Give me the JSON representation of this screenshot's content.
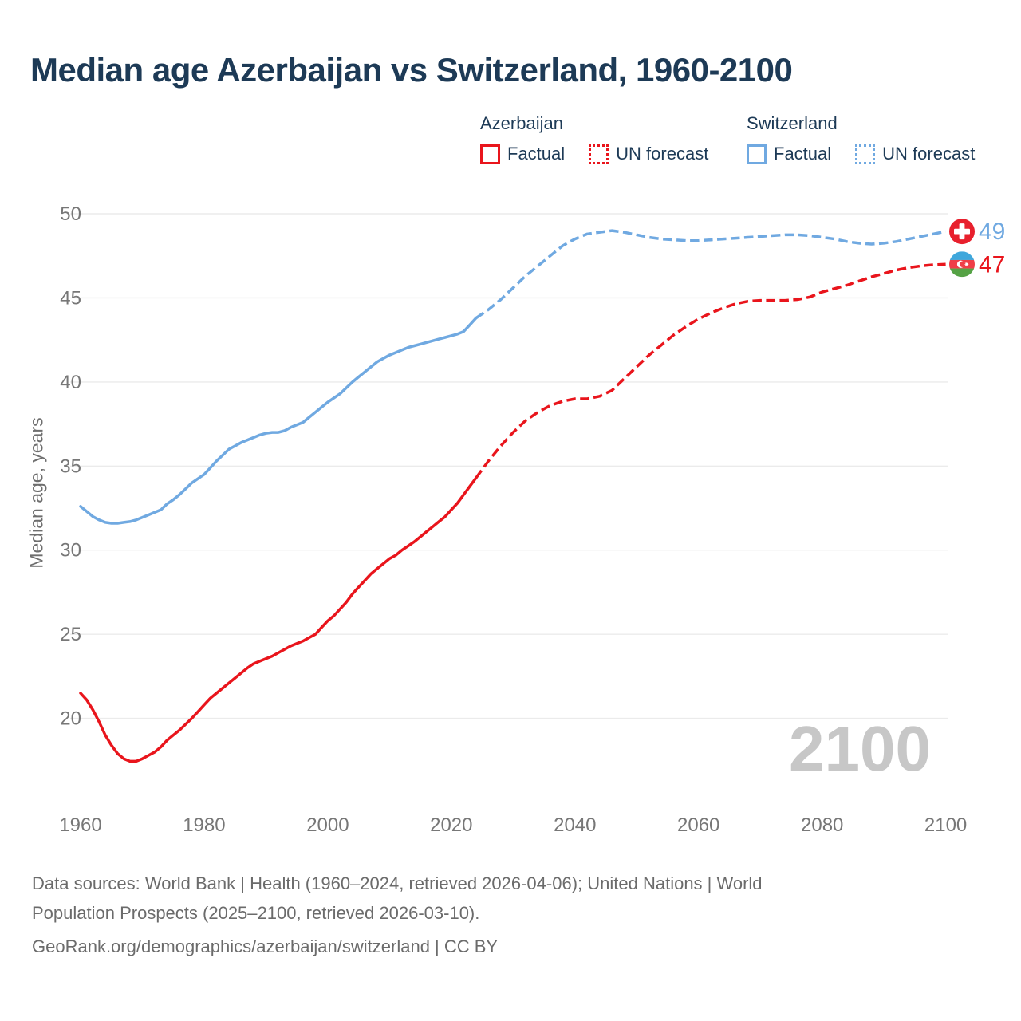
{
  "title": "Median age Azerbaijan vs Switzerland, 1960-2100",
  "watermark": "2100",
  "colors": {
    "red": "#e9151c",
    "blue": "#70a9e1",
    "navy": "#1d3a56",
    "tick_gray": "#777777",
    "grid_gray": "#ebebeb",
    "watermark_gray": "#c7c7c7"
  },
  "legend": {
    "groups": [
      {
        "name": "Azerbaijan",
        "items": [
          {
            "label": "Factual",
            "style": "solid"
          },
          {
            "label": "UN forecast",
            "style": "dotted"
          }
        ]
      },
      {
        "name": "Switzerland",
        "items": [
          {
            "label": "Factual",
            "style": "solid"
          },
          {
            "label": "UN forecast",
            "style": "dotted"
          }
        ]
      }
    ]
  },
  "footer": {
    "line1": "Data sources: World Bank | Health (1960–2024, retrieved 2026-04-06); United Nations | World",
    "line2": "Population Prospects (2025–2100, retrieved 2026-03-10).",
    "line3": "GeoRank.org/demographics/azerbaijan/switzerland | CC BY"
  },
  "chart_data": {
    "type": "line",
    "title": "Median age Azerbaijan vs Switzerland, 1960-2100",
    "xlabel": "",
    "ylabel": "Median age, years",
    "xlim": [
      1960,
      2100
    ],
    "ylim": [
      17,
      50
    ],
    "grid": "horizontal-only",
    "legend_position": "top-right",
    "yticks": [
      50,
      45,
      40,
      35,
      30,
      25,
      20
    ],
    "xticks": [
      1960,
      1980,
      2000,
      2020,
      2040,
      2060,
      2080,
      2100
    ],
    "flag_colors": {
      "swiss_red": "#e8202d",
      "az_blue": "#3fa7dc",
      "az_red": "#ef3e47",
      "az_green": "#55a245"
    },
    "end_markers": [
      {
        "flag": "switzerland-flag",
        "label": "49",
        "value": 48.95,
        "label_color": "#70a9e1"
      },
      {
        "flag": "azerbaijan-flag",
        "label": "47",
        "value": 47.0,
        "label_color": "#e9151c"
      }
    ],
    "series": [
      {
        "id": "switzerland-factual",
        "name": "Switzerland Factual",
        "color": "#70a9e1",
        "style": "solid",
        "points": [
          [
            1960,
            32.6
          ],
          [
            1961,
            32.3
          ],
          [
            1962,
            32.0
          ],
          [
            1963,
            31.8
          ],
          [
            1964,
            31.65
          ],
          [
            1965,
            31.6
          ],
          [
            1966,
            31.6
          ],
          [
            1967,
            31.65
          ],
          [
            1968,
            31.7
          ],
          [
            1969,
            31.8
          ],
          [
            1970,
            31.95
          ],
          [
            1971,
            32.1
          ],
          [
            1972,
            32.25
          ],
          [
            1973,
            32.4
          ],
          [
            1974,
            32.75
          ],
          [
            1975,
            33.0
          ],
          [
            1976,
            33.3
          ],
          [
            1977,
            33.65
          ],
          [
            1978,
            34.0
          ],
          [
            1979,
            34.25
          ],
          [
            1980,
            34.5
          ],
          [
            1981,
            34.9
          ],
          [
            1982,
            35.3
          ],
          [
            1983,
            35.65
          ],
          [
            1984,
            36.0
          ],
          [
            1985,
            36.2
          ],
          [
            1986,
            36.4
          ],
          [
            1987,
            36.55
          ],
          [
            1988,
            36.7
          ],
          [
            1989,
            36.85
          ],
          [
            1990,
            36.95
          ],
          [
            1991,
            37.0
          ],
          [
            1992,
            37.0
          ],
          [
            1993,
            37.1
          ],
          [
            1994,
            37.3
          ],
          [
            1995,
            37.45
          ],
          [
            1996,
            37.6
          ],
          [
            1997,
            37.9
          ],
          [
            1998,
            38.2
          ],
          [
            1999,
            38.5
          ],
          [
            2000,
            38.8
          ],
          [
            2001,
            39.05
          ],
          [
            2002,
            39.3
          ],
          [
            2003,
            39.65
          ],
          [
            2004,
            40.0
          ],
          [
            2005,
            40.3
          ],
          [
            2006,
            40.6
          ],
          [
            2007,
            40.9
          ],
          [
            2008,
            41.2
          ],
          [
            2009,
            41.4
          ],
          [
            2010,
            41.6
          ],
          [
            2011,
            41.75
          ],
          [
            2012,
            41.9
          ],
          [
            2013,
            42.05
          ],
          [
            2014,
            42.15
          ],
          [
            2015,
            42.25
          ],
          [
            2016,
            42.35
          ],
          [
            2017,
            42.45
          ],
          [
            2018,
            42.55
          ],
          [
            2019,
            42.65
          ],
          [
            2020,
            42.75
          ],
          [
            2021,
            42.85
          ],
          [
            2022,
            43.0
          ],
          [
            2023,
            43.4
          ],
          [
            2024,
            43.8
          ]
        ]
      },
      {
        "id": "switzerland-forecast",
        "name": "Switzerland UN forecast",
        "color": "#70a9e1",
        "style": "dashed",
        "points": [
          [
            2024,
            43.8
          ],
          [
            2026,
            44.3
          ],
          [
            2028,
            44.9
          ],
          [
            2030,
            45.6
          ],
          [
            2032,
            46.3
          ],
          [
            2034,
            46.9
          ],
          [
            2036,
            47.5
          ],
          [
            2038,
            48.1
          ],
          [
            2040,
            48.5
          ],
          [
            2042,
            48.8
          ],
          [
            2044,
            48.9
          ],
          [
            2046,
            49.0
          ],
          [
            2048,
            48.9
          ],
          [
            2050,
            48.75
          ],
          [
            2052,
            48.6
          ],
          [
            2054,
            48.5
          ],
          [
            2056,
            48.45
          ],
          [
            2058,
            48.4
          ],
          [
            2060,
            48.4
          ],
          [
            2062,
            48.45
          ],
          [
            2064,
            48.5
          ],
          [
            2066,
            48.55
          ],
          [
            2068,
            48.6
          ],
          [
            2070,
            48.65
          ],
          [
            2072,
            48.7
          ],
          [
            2074,
            48.75
          ],
          [
            2076,
            48.75
          ],
          [
            2078,
            48.7
          ],
          [
            2080,
            48.6
          ],
          [
            2082,
            48.5
          ],
          [
            2084,
            48.35
          ],
          [
            2086,
            48.25
          ],
          [
            2088,
            48.2
          ],
          [
            2090,
            48.25
          ],
          [
            2092,
            48.35
          ],
          [
            2094,
            48.5
          ],
          [
            2096,
            48.65
          ],
          [
            2098,
            48.8
          ],
          [
            2100,
            48.95
          ]
        ]
      },
      {
        "id": "azerbaijan-factual",
        "name": "Azerbaijan Factual",
        "color": "#e9151c",
        "style": "solid",
        "points": [
          [
            1960,
            21.5
          ],
          [
            1961,
            21.1
          ],
          [
            1962,
            20.5
          ],
          [
            1963,
            19.8
          ],
          [
            1964,
            19.0
          ],
          [
            1965,
            18.4
          ],
          [
            1966,
            17.9
          ],
          [
            1967,
            17.6
          ],
          [
            1968,
            17.45
          ],
          [
            1969,
            17.45
          ],
          [
            1970,
            17.6
          ],
          [
            1971,
            17.8
          ],
          [
            1972,
            18.0
          ],
          [
            1973,
            18.3
          ],
          [
            1974,
            18.7
          ],
          [
            1975,
            19.0
          ],
          [
            1976,
            19.3
          ],
          [
            1977,
            19.65
          ],
          [
            1978,
            20.0
          ],
          [
            1979,
            20.4
          ],
          [
            1980,
            20.8
          ],
          [
            1981,
            21.2
          ],
          [
            1982,
            21.5
          ],
          [
            1983,
            21.8
          ],
          [
            1984,
            22.1
          ],
          [
            1985,
            22.4
          ],
          [
            1986,
            22.7
          ],
          [
            1987,
            23.0
          ],
          [
            1988,
            23.25
          ],
          [
            1989,
            23.4
          ],
          [
            1990,
            23.55
          ],
          [
            1991,
            23.7
          ],
          [
            1992,
            23.9
          ],
          [
            1993,
            24.1
          ],
          [
            1994,
            24.3
          ],
          [
            1995,
            24.45
          ],
          [
            1996,
            24.6
          ],
          [
            1997,
            24.8
          ],
          [
            1998,
            25.0
          ],
          [
            1999,
            25.4
          ],
          [
            2000,
            25.8
          ],
          [
            2001,
            26.1
          ],
          [
            2002,
            26.5
          ],
          [
            2003,
            26.9
          ],
          [
            2004,
            27.4
          ],
          [
            2005,
            27.8
          ],
          [
            2006,
            28.2
          ],
          [
            2007,
            28.6
          ],
          [
            2008,
            28.9
          ],
          [
            2009,
            29.2
          ],
          [
            2010,
            29.5
          ],
          [
            2011,
            29.7
          ],
          [
            2012,
            30.0
          ],
          [
            2013,
            30.25
          ],
          [
            2014,
            30.5
          ],
          [
            2015,
            30.8
          ],
          [
            2016,
            31.1
          ],
          [
            2017,
            31.4
          ],
          [
            2018,
            31.7
          ],
          [
            2019,
            32.0
          ],
          [
            2020,
            32.4
          ],
          [
            2021,
            32.8
          ],
          [
            2022,
            33.3
          ],
          [
            2023,
            33.8
          ],
          [
            2024,
            34.3
          ]
        ]
      },
      {
        "id": "azerbaijan-forecast",
        "name": "Azerbaijan UN forecast",
        "color": "#e9151c",
        "style": "dashed",
        "points": [
          [
            2024,
            34.3
          ],
          [
            2026,
            35.3
          ],
          [
            2028,
            36.2
          ],
          [
            2030,
            37.0
          ],
          [
            2032,
            37.7
          ],
          [
            2034,
            38.2
          ],
          [
            2036,
            38.6
          ],
          [
            2038,
            38.85
          ],
          [
            2040,
            39.0
          ],
          [
            2042,
            39.0
          ],
          [
            2044,
            39.15
          ],
          [
            2046,
            39.5
          ],
          [
            2048,
            40.2
          ],
          [
            2050,
            40.9
          ],
          [
            2052,
            41.6
          ],
          [
            2054,
            42.2
          ],
          [
            2056,
            42.8
          ],
          [
            2058,
            43.3
          ],
          [
            2060,
            43.75
          ],
          [
            2062,
            44.1
          ],
          [
            2064,
            44.4
          ],
          [
            2066,
            44.65
          ],
          [
            2068,
            44.8
          ],
          [
            2070,
            44.85
          ],
          [
            2072,
            44.85
          ],
          [
            2074,
            44.85
          ],
          [
            2076,
            44.9
          ],
          [
            2078,
            45.05
          ],
          [
            2080,
            45.35
          ],
          [
            2082,
            45.55
          ],
          [
            2084,
            45.75
          ],
          [
            2086,
            46.0
          ],
          [
            2088,
            46.25
          ],
          [
            2090,
            46.45
          ],
          [
            2092,
            46.65
          ],
          [
            2094,
            46.8
          ],
          [
            2096,
            46.9
          ],
          [
            2098,
            46.97
          ],
          [
            2100,
            47.0
          ]
        ]
      }
    ]
  }
}
